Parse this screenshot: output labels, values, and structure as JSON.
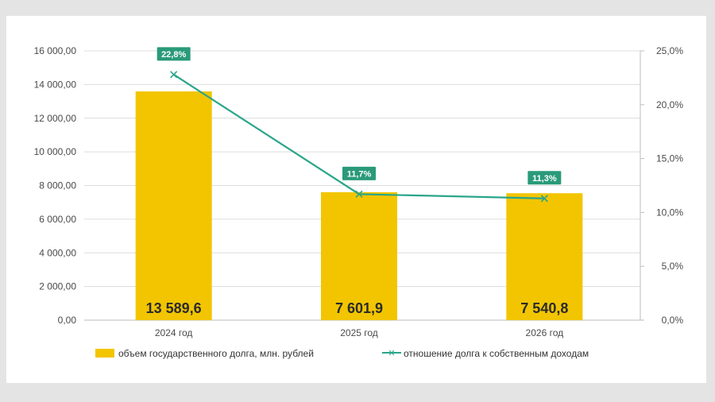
{
  "chart_data": {
    "type": "bar",
    "categories": [
      "2024 год",
      "2025 год",
      "2026 год"
    ],
    "series": [
      {
        "name": "объем государственного долга, млн. рублей",
        "type": "bar",
        "axis": "left",
        "values": [
          13589.6,
          7601.9,
          7540.8
        ],
        "labels": [
          "13 589,6",
          "7 601,9",
          "7 540,8"
        ],
        "color": "#f2c500"
      },
      {
        "name": "отношение долга к собственным доходам",
        "type": "line",
        "axis": "right",
        "values": [
          22.8,
          11.7,
          11.3
        ],
        "labels": [
          "22,8%",
          "11,7%",
          "11,3%"
        ],
        "color": "#2aa58a"
      }
    ],
    "y_left": {
      "range": [
        0,
        16000
      ],
      "ticks": [
        0,
        2000,
        4000,
        6000,
        8000,
        10000,
        12000,
        14000,
        16000
      ],
      "tick_labels": [
        "0,00",
        "2 000,00",
        "4 000,00",
        "6 000,00",
        "8 000,00",
        "10 000,00",
        "12 000,00",
        "14 000,00",
        "16 000,00"
      ]
    },
    "y_right": {
      "range": [
        0,
        25
      ],
      "ticks": [
        0,
        5,
        10,
        15,
        20,
        25
      ],
      "tick_labels": [
        "0,0%",
        "5,0%",
        "10,0%",
        "15,0%",
        "20,0%",
        "25,0%"
      ]
    },
    "grid": true,
    "legend_position": "bottom"
  }
}
